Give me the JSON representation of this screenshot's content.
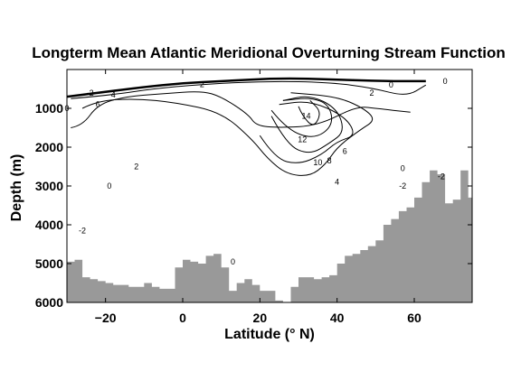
{
  "chart_data": {
    "type": "contour",
    "title": "Longterm Mean Atlantic Meridional Overturning Stream Function",
    "xlabel": "Latitude (° N)",
    "ylabel": "Depth (m)",
    "xlim": [
      -30,
      75
    ],
    "ylim": [
      6000,
      0
    ],
    "xticks": [
      -20,
      0,
      20,
      40,
      60
    ],
    "yticks": [
      1000,
      2000,
      3000,
      4000,
      5000,
      6000
    ],
    "grid": false,
    "legend": "none",
    "colors": {
      "bathymetry": "#999999",
      "contour": "#000000"
    },
    "contour_levels_labeled": [
      -2,
      0,
      2,
      4,
      6,
      8,
      10,
      12,
      14
    ],
    "max_value": 14,
    "max_location": {
      "lat": 33,
      "depth": 1200
    },
    "contour_labels": [
      {
        "text": "-2",
        "lat": -24,
        "depth": 600
      },
      {
        "text": "4",
        "lat": -18,
        "depth": 650
      },
      {
        "text": "6",
        "lat": -22,
        "depth": 900
      },
      {
        "text": "2",
        "lat": 5,
        "depth": 380
      },
      {
        "text": "0",
        "lat": 54,
        "depth": 400
      },
      {
        "text": "2",
        "lat": 49,
        "depth": 600
      },
      {
        "text": "0",
        "lat": -30,
        "depth": 1000
      },
      {
        "text": "14",
        "lat": 32,
        "depth": 1200
      },
      {
        "text": "12",
        "lat": 31,
        "depth": 1800
      },
      {
        "text": "6",
        "lat": 42,
        "depth": 2100
      },
      {
        "text": "10",
        "lat": 35,
        "depth": 2400
      },
      {
        "text": "8",
        "lat": 38,
        "depth": 2350
      },
      {
        "text": "2",
        "lat": -12,
        "depth": 2500
      },
      {
        "text": "0",
        "lat": -19,
        "depth": 3000
      },
      {
        "text": "4",
        "lat": 40,
        "depth": 2900
      },
      {
        "text": "0",
        "lat": 57,
        "depth": 2550
      },
      {
        "text": "-2",
        "lat": 67,
        "depth": 2750
      },
      {
        "text": "-2",
        "lat": 57,
        "depth": 3000
      },
      {
        "text": "-2",
        "lat": -26,
        "depth": 4150
      },
      {
        "text": "0",
        "lat": 13,
        "depth": 4950
      },
      {
        "text": "0",
        "lat": 68,
        "depth": 300
      }
    ],
    "bathymetry": {
      "lat": [
        -30,
        -28,
        -26,
        -24,
        -22,
        -20,
        -18,
        -16,
        -14,
        -12,
        -10,
        -8,
        -6,
        -4,
        -2,
        0,
        2,
        4,
        6,
        8,
        10,
        12,
        14,
        16,
        18,
        20,
        22,
        24,
        26,
        28,
        30,
        32,
        34,
        36,
        38,
        40,
        42,
        44,
        46,
        48,
        50,
        52,
        54,
        56,
        58,
        60,
        62,
        64,
        66,
        68,
        70,
        72,
        74,
        75
      ],
      "depth": [
        4950,
        4900,
        5350,
        5400,
        5450,
        5500,
        5550,
        5550,
        5600,
        5600,
        5500,
        5600,
        5650,
        5650,
        5100,
        4900,
        4950,
        5000,
        4800,
        4750,
        5100,
        5700,
        5500,
        5400,
        5550,
        5700,
        5700,
        5950,
        6000,
        5600,
        5350,
        5350,
        5400,
        5350,
        5300,
        5000,
        4800,
        4750,
        4650,
        4550,
        4400,
        4000,
        3850,
        3650,
        3550,
        3300,
        2900,
        2600,
        2700,
        3450,
        3350,
        2600,
        3300,
        3300
      ]
    },
    "contours": [
      {
        "level": 0,
        "pts": [
          [
            -30,
            700
          ],
          [
            -22,
            600
          ],
          [
            -10,
            450
          ],
          [
            0,
            350
          ],
          [
            10,
            300
          ],
          [
            25,
            220
          ],
          [
            40,
            260
          ],
          [
            52,
            300
          ],
          [
            63,
            300
          ]
        ]
      },
      {
        "level": 2,
        "pts": [
          [
            -29,
            750
          ],
          [
            -18,
            650
          ],
          [
            -8,
            500
          ],
          [
            5,
            380
          ],
          [
            22,
            300
          ],
          [
            38,
            330
          ],
          [
            49,
            470
          ],
          [
            58,
            700
          ],
          [
            63,
            400
          ]
        ]
      },
      {
        "level": 4,
        "pts": [
          [
            -29,
            1500
          ],
          [
            -26,
            1450
          ],
          [
            -22,
            900
          ],
          [
            -15,
            700
          ],
          [
            -5,
            620
          ],
          [
            5,
            550
          ],
          [
            10,
            700
          ],
          [
            17,
            1150
          ],
          [
            19,
            1450
          ],
          [
            25,
            1500
          ],
          [
            35,
            1450
          ],
          [
            45,
            950
          ],
          [
            50,
            1000
          ],
          [
            59,
            1100
          ]
        ]
      },
      {
        "level": 6,
        "pts": [
          [
            -26,
            1000
          ],
          [
            -22,
            800
          ],
          [
            -12,
            750
          ],
          [
            -2,
            850
          ],
          [
            10,
            1100
          ],
          [
            18,
            1800
          ],
          [
            22,
            2300
          ],
          [
            27,
            2700
          ],
          [
            33,
            2750
          ],
          [
            37,
            2450
          ],
          [
            40,
            2000
          ],
          [
            46,
            1550
          ],
          [
            50,
            1300
          ],
          [
            47,
            1000
          ],
          [
            40,
            700
          ],
          [
            28,
            600
          ]
        ]
      },
      {
        "level": 8,
        "pts": [
          [
            20,
            1700
          ],
          [
            24,
            2300
          ],
          [
            30,
            2450
          ],
          [
            36,
            2200
          ],
          [
            40,
            1850
          ],
          [
            45,
            1700
          ],
          [
            42,
            1200
          ],
          [
            33,
            800
          ],
          [
            25,
            900
          ]
        ]
      },
      {
        "level": 10,
        "pts": [
          [
            23,
            1200
          ],
          [
            27,
            1950
          ],
          [
            33,
            2200
          ],
          [
            38,
            1900
          ],
          [
            42,
            1600
          ],
          [
            40,
            1000
          ],
          [
            33,
            650
          ],
          [
            26,
            800
          ]
        ]
      },
      {
        "level": 12,
        "pts": [
          [
            23,
            1050
          ],
          [
            27,
            1550
          ],
          [
            34,
            1800
          ],
          [
            39,
            1450
          ],
          [
            38,
            900
          ],
          [
            33,
            720
          ],
          [
            26,
            800
          ]
        ]
      },
      {
        "level": 14,
        "pts": [
          [
            30,
            950
          ],
          [
            31,
            1200
          ],
          [
            34,
            1500
          ],
          [
            36,
            1100
          ],
          [
            33,
            800
          ]
        ]
      }
    ]
  }
}
